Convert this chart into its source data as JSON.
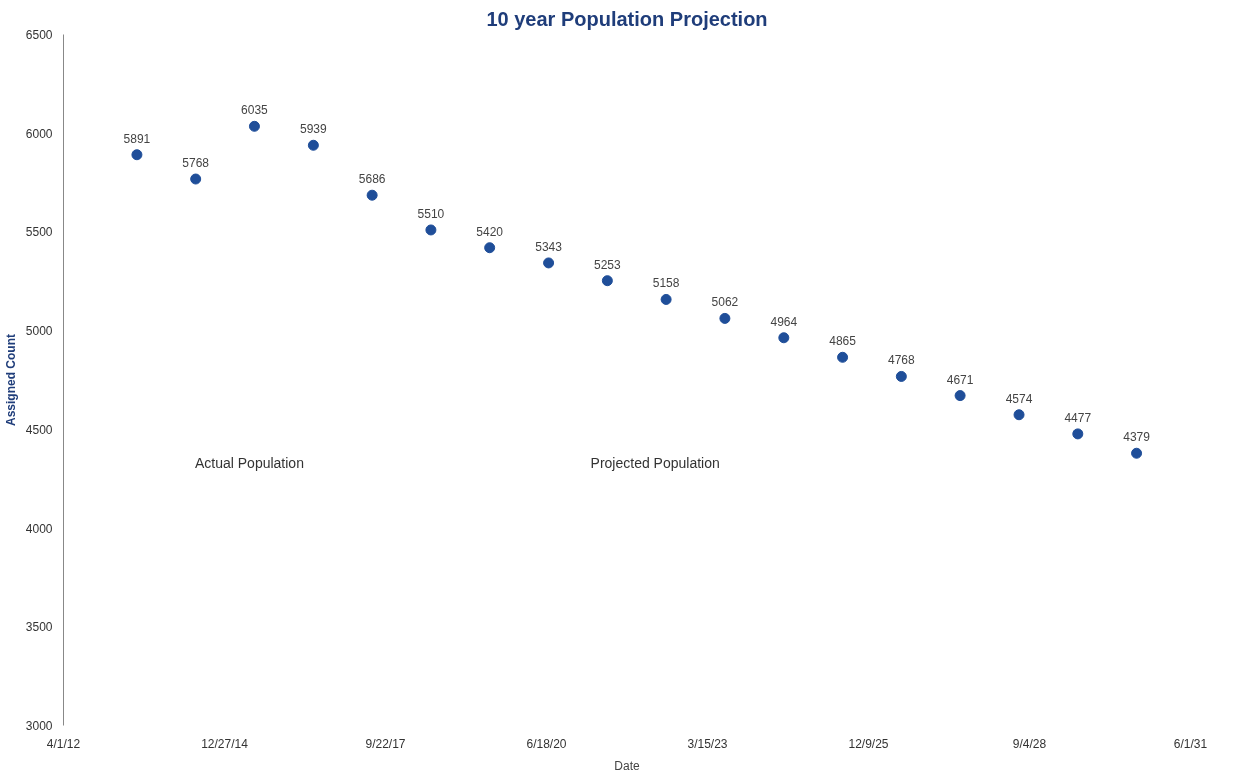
{
  "chart_data": {
    "type": "scatter",
    "title": "10 year Population Projection",
    "xlabel": "Date",
    "ylabel": "Assigned Count",
    "x": [
      "2013-07-01",
      "2014-07-01",
      "2015-07-01",
      "2016-07-01",
      "2017-07-01",
      "2018-07-01",
      "2019-07-01",
      "2020-07-01",
      "2021-07-01",
      "2022-07-01",
      "2023-07-01",
      "2024-07-01",
      "2025-07-01",
      "2026-07-01",
      "2027-07-01",
      "2028-07-01",
      "2029-07-01",
      "2030-07-01"
    ],
    "series": [
      {
        "color": "#1f4e99",
        "values": [
          5891,
          5768,
          6035,
          5939,
          5686,
          5510,
          5420,
          5343,
          5253,
          5158,
          5062,
          4964,
          4865,
          4768,
          4671,
          4574,
          4477,
          4379
        ]
      }
    ],
    "data_labels": true,
    "marker": "circle",
    "grid": false,
    "xlim": [
      "2012-04-01",
      "2031-06-01"
    ],
    "xticks": [
      {
        "value": "2012-04-01",
        "label": "4/1/12"
      },
      {
        "value": "2014-12-27",
        "label": "12/27/14"
      },
      {
        "value": "2017-09-22",
        "label": "9/22/17"
      },
      {
        "value": "2020-06-18",
        "label": "6/18/20"
      },
      {
        "value": "2023-03-15",
        "label": "3/15/23"
      },
      {
        "value": "2025-12-09",
        "label": "12/9/25"
      },
      {
        "value": "2028-09-04",
        "label": "9/4/28"
      },
      {
        "value": "2031-06-01",
        "label": "6/1/31"
      }
    ],
    "ylim": [
      3000,
      6500
    ],
    "yticks": [
      3000,
      3500,
      4000,
      4500,
      5000,
      5500,
      6000,
      6500
    ],
    "annotations": [
      "Actual Population",
      "Projected Population"
    ]
  }
}
